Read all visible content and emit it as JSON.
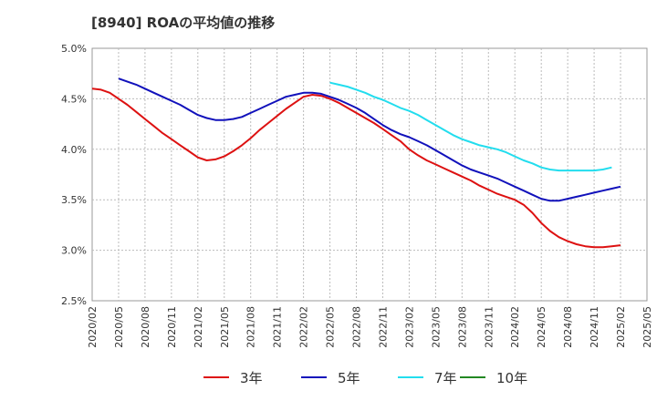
{
  "chart_data": {
    "type": "line",
    "title": "[8940]  ROAの平均値の推移",
    "ylim": [
      2.5,
      5.0
    ],
    "yticks": [
      2.5,
      3.0,
      3.5,
      4.0,
      4.5,
      5.0
    ],
    "ytick_labels": [
      "2.5%",
      "3.0%",
      "3.5%",
      "4.0%",
      "4.5%",
      "5.0%"
    ],
    "x_ticks": [
      "2020/02",
      "2020/05",
      "2020/08",
      "2020/11",
      "2021/02",
      "2021/05",
      "2021/08",
      "2021/11",
      "2022/02",
      "2022/05",
      "2022/08",
      "2022/11",
      "2023/02",
      "2023/05",
      "2023/08",
      "2023/11",
      "2024/02",
      "2024/05",
      "2024/08",
      "2024/11",
      "2025/02",
      "2025/05"
    ],
    "grid": true,
    "legend_position": "bottom",
    "series": [
      {
        "name": "3年",
        "color": "#dd1111",
        "start": "2020/02",
        "values": [
          4.6,
          4.59,
          4.56,
          4.5,
          4.44,
          4.37,
          4.3,
          4.23,
          4.16,
          4.1,
          4.04,
          3.98,
          3.92,
          3.89,
          3.9,
          3.93,
          3.98,
          4.04,
          4.11,
          4.19,
          4.26,
          4.33,
          4.4,
          4.46,
          4.52,
          4.54,
          4.53,
          4.5,
          4.46,
          4.41,
          4.36,
          4.31,
          4.26,
          4.2,
          4.14,
          4.08,
          4.0,
          3.94,
          3.89,
          3.85,
          3.81,
          3.77,
          3.73,
          3.69,
          3.64,
          3.6,
          3.56,
          3.53,
          3.5,
          3.45,
          3.37,
          3.27,
          3.19,
          3.13,
          3.09,
          3.06,
          3.04,
          3.03,
          3.03,
          3.04,
          3.05
        ]
      },
      {
        "name": "5年",
        "color": "#1111bb",
        "start": "2020/05",
        "values": [
          4.7,
          4.67,
          4.64,
          4.6,
          4.56,
          4.52,
          4.48,
          4.44,
          4.39,
          4.34,
          4.31,
          4.29,
          4.29,
          4.3,
          4.32,
          4.36,
          4.4,
          4.44,
          4.48,
          4.52,
          4.54,
          4.56,
          4.56,
          4.55,
          4.52,
          4.49,
          4.45,
          4.41,
          4.36,
          4.3,
          4.24,
          4.19,
          4.15,
          4.12,
          4.08,
          4.04,
          3.99,
          3.94,
          3.89,
          3.84,
          3.8,
          3.77,
          3.74,
          3.71,
          3.67,
          3.63,
          3.59,
          3.55,
          3.51,
          3.49,
          3.49,
          3.51,
          3.53,
          3.55,
          3.57,
          3.59,
          3.61,
          3.63
        ]
      },
      {
        "name": "7年",
        "color": "#22ddee",
        "start": "2022/05",
        "values": [
          4.66,
          4.64,
          4.62,
          4.59,
          4.56,
          4.52,
          4.49,
          4.45,
          4.41,
          4.38,
          4.34,
          4.29,
          4.24,
          4.19,
          4.14,
          4.1,
          4.07,
          4.04,
          4.02,
          4.0,
          3.97,
          3.93,
          3.89,
          3.86,
          3.82,
          3.8,
          3.79,
          3.79,
          3.79,
          3.79,
          3.79,
          3.8,
          3.82
        ]
      },
      {
        "name": "10年",
        "color": "#228822",
        "start": "2022/05",
        "values": []
      }
    ]
  }
}
